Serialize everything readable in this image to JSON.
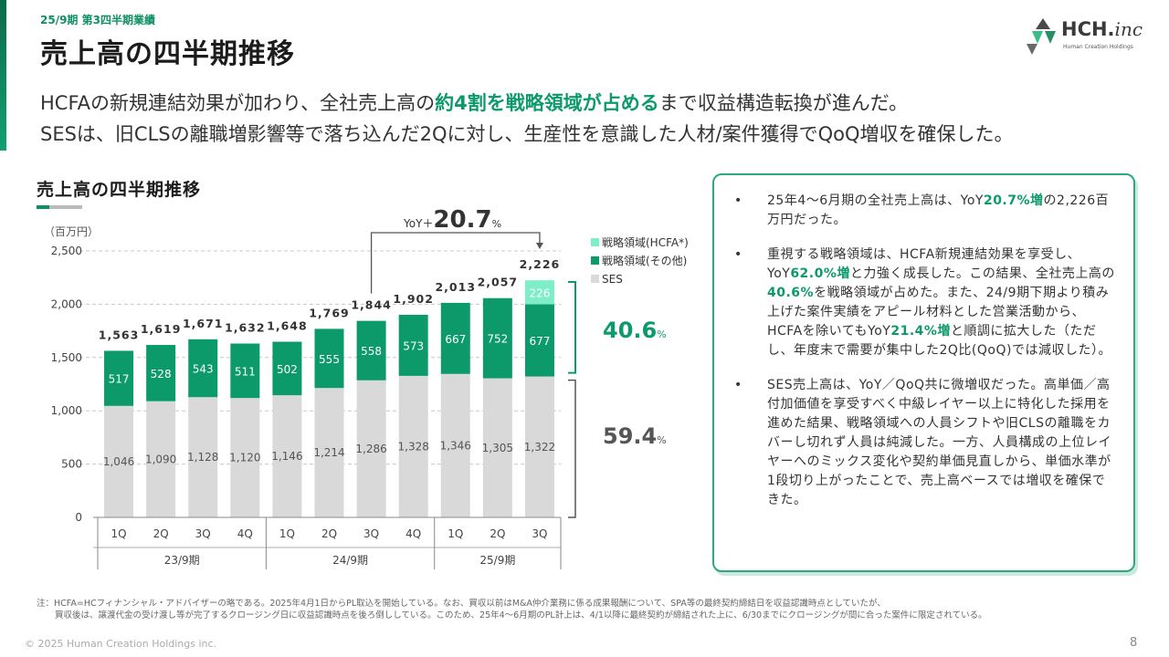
{
  "header": {
    "kicker": "25/9期 第3四半期業績",
    "title": "売上高の四半期推移"
  },
  "logo": {
    "name": "HCH.",
    "suffix": "inc",
    "sub": "Human Creation Holdings"
  },
  "headline": {
    "line1_a": "HCFAの新規連結効果が加わり、全社売上高の",
    "line1_b": "約4割を戦略領域が占める",
    "line1_c": "まで収益構造転換が進んだ。",
    "line2": "SESは、旧CLSの離職増影響等で落ち込んだ2Qに対し、生産性を意識した人材/案件獲得でQoQ増収を確保した。"
  },
  "section_title": "売上高の四半期推移",
  "chart_data": {
    "type": "bar",
    "stacked": true,
    "unit_label": "（百万円）",
    "categories": [
      "1Q",
      "2Q",
      "3Q",
      "4Q",
      "1Q",
      "2Q",
      "3Q",
      "4Q",
      "1Q",
      "2Q",
      "3Q"
    ],
    "groups": [
      {
        "label": "23/9期",
        "count": 4
      },
      {
        "label": "24/9期",
        "count": 4
      },
      {
        "label": "25/9期",
        "count": 3
      }
    ],
    "series": [
      {
        "name": "SES",
        "color": "#d9d9d9",
        "values": [
          1046,
          1090,
          1128,
          1120,
          1146,
          1214,
          1286,
          1328,
          1346,
          1305,
          1322
        ]
      },
      {
        "name": "戦略領域(その他)",
        "color": "#0d9a6a",
        "values": [
          517,
          528,
          543,
          511,
          502,
          555,
          558,
          573,
          667,
          752,
          677
        ]
      },
      {
        "name": "戦略領域(HCFA*)",
        "color": "#7eeec8",
        "values": [
          0,
          0,
          0,
          0,
          0,
          0,
          0,
          0,
          0,
          0,
          226
        ]
      }
    ],
    "totals": [
      1563,
      1619,
      1671,
      1632,
      1648,
      1769,
      1844,
      1902,
      2013,
      2057,
      2226
    ],
    "total_labels": [
      "1,563",
      "1,619",
      "1,671",
      "1,632",
      "1,648",
      "1,769",
      "1,844",
      "1,902",
      "2,013",
      "2,057",
      "2,226"
    ],
    "ses_labels": [
      "1,046",
      "1,090",
      "1,128",
      "1,120",
      "1,146",
      "1,214",
      "1,286",
      "1,328",
      "1,346",
      "1,305",
      "1,322"
    ],
    "ylim": [
      0,
      2500
    ],
    "yticks": [
      0,
      500,
      1000,
      1500,
      2000,
      2500
    ],
    "ytick_labels": [
      "0",
      "500",
      "1,000",
      "1,500",
      "2,000",
      "2,500"
    ],
    "grid": true,
    "legend_position": "top-right",
    "yoy_prefix": "YoY＋",
    "yoy_value": "20.7",
    "yoy_unit": "%",
    "share_strategic": "40.6",
    "share_ses": "59.4",
    "share_unit": "%"
  },
  "panel": {
    "bullet": "•",
    "b1_a": "25年4〜6月期の全社売上高は、YoY",
    "b1_b": "20.7%増",
    "b1_c": "の2,226百万円だった。",
    "b2_a": "重視する戦略領域は、HCFA新規連結効果を享受し、YoY",
    "b2_b": "62.0%増",
    "b2_c": "と力強く成長した。この結果、全社売上高の",
    "b2_d": "40.6%",
    "b2_e": "を戦略領域が占めた。また、24/9期下期より積み上げた案件実績をアピール材料とした営業活動から、HCFAを除いてもYoY",
    "b2_f": "21.4%増",
    "b2_g": "と順調に拡大した（ただし、年度末で需要が集中した2Q比(QoQ)では減収した）。",
    "b3": "SES売上高は、YoY／QoQ共に微増収だった。高単価／高付加価値を享受すべく中級レイヤー以上に特化した採用を進めた結果、戦略領域への人員シフトや旧CLSの離職をカバーし切れず人員は純減した。一方、人員構成の上位レイヤーへのミックス変化や契約単価見直しから、単価水準が1段切り上がったことで、売上高ベースでは増収を確保できた。"
  },
  "footnote": {
    "line1": "注：HCFA=HCフィナンシャル・アドバイザーの略である。2025年4月1日からPL取込を開始している。なお、買収以前はM&A仲介業務に係る成果報酬について、SPA等の最終契約締結日を収益認識時点としていたが、",
    "line2": "買収後は、譲渡代金の受け渡し等が完了するクロージング日に収益認識時点を後ろ倒ししている。このため、25年4〜6月期のPL計上は、4/1以降に最終契約が締結された上に、6/30までにクロージングが間に合った案件に限定されている。"
  },
  "copyright": "© 2025 Human Creation Holdings inc.",
  "page_number": "8"
}
